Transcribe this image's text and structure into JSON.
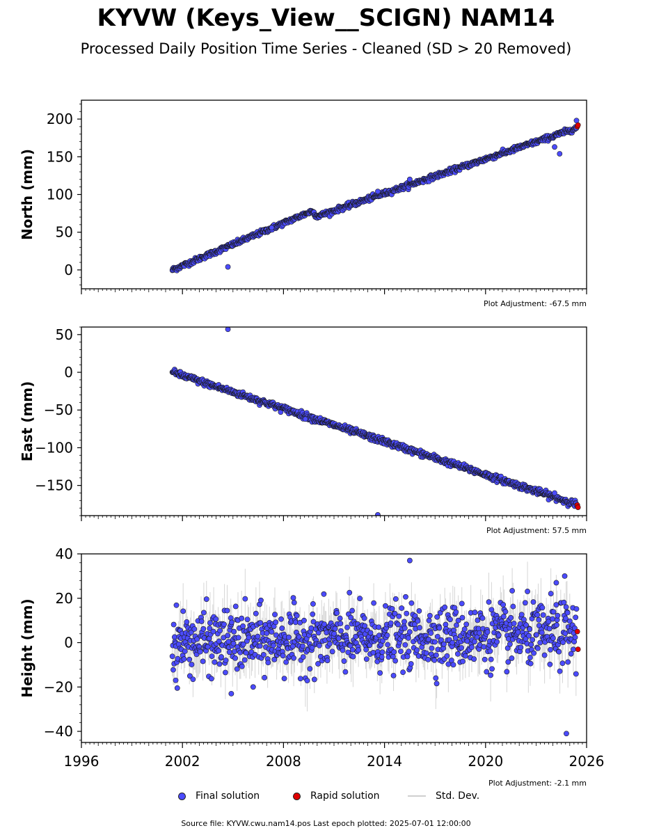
{
  "header": {
    "title": "KYVW (Keys_View__SCIGN) NAM14",
    "subtitle": "Processed Daily Position Time Series - Cleaned (SD > 20 Removed)"
  },
  "legend": {
    "final_label": "Final solution",
    "rapid_label": "Rapid solution",
    "sd_label": "Std. Dev."
  },
  "footer": {
    "source": "Source file: KYVW.cwu.nam14.pos  Last epoch plotted: 2025-07-01 12:00:00"
  },
  "colors": {
    "final": "#4b4bff",
    "rapid": "#e00000",
    "stddev": "#c8c8c8",
    "marker_edge": "#1a1a1a"
  },
  "chart_data": [
    {
      "type": "scatter",
      "ylabel": "North (mm)",
      "ylim": [
        -25,
        225
      ],
      "yticks": [
        0,
        50,
        100,
        150,
        200
      ],
      "xlim": [
        1996,
        2026
      ],
      "xticks": [
        1996,
        2002,
        2008,
        2014,
        2020,
        2026
      ],
      "show_xtick_labels": false,
      "adjustment": "Plot Adjustment: -67.5 mm",
      "series": [
        {
          "name": "Final solution",
          "trend_points": [
            [
              2001.4,
              0
            ],
            [
              2009.7,
              78
            ],
            [
              2010.0,
              71
            ],
            [
              2025.4,
              188
            ]
          ],
          "scatter_sd_mm": 1.6
        },
        {
          "name": "Rapid solution",
          "points": [
            [
              2025.45,
              190
            ],
            [
              2025.49,
              192
            ]
          ]
        }
      ],
      "outliers": [
        [
          2004.7,
          4
        ],
        [
          2013.6,
          104
        ],
        [
          2015.5,
          120
        ],
        [
          2024.1,
          163
        ],
        [
          2024.4,
          154
        ],
        [
          2025.4,
          198
        ],
        [
          2007.3,
          56
        ]
      ]
    },
    {
      "type": "scatter",
      "ylabel": "East (mm)",
      "ylim": [
        -190,
        60
      ],
      "yticks": [
        50,
        0,
        -50,
        -100,
        -150
      ],
      "xlim": [
        1996,
        2026
      ],
      "xticks": [
        1996,
        2002,
        2008,
        2014,
        2020,
        2026
      ],
      "show_xtick_labels": false,
      "adjustment": "Plot Adjustment: 57.5 mm",
      "series": [
        {
          "name": "Final solution",
          "trend_points": [
            [
              2001.4,
              0
            ],
            [
              2025.4,
              -175
            ]
          ],
          "scatter_sd_mm": 2.0
        },
        {
          "name": "Rapid solution",
          "points": [
            [
              2025.45,
              -176
            ],
            [
              2025.49,
              -179
            ]
          ]
        }
      ],
      "outliers": [
        [
          2004.7,
          57
        ],
        [
          2013.6,
          -189
        ],
        [
          2009.3,
          -62
        ],
        [
          2024.1,
          -160
        ]
      ]
    },
    {
      "type": "scatter",
      "ylabel": "Height (mm)",
      "ylim": [
        -45,
        40
      ],
      "yticks": [
        40,
        20,
        0,
        -20,
        -40
      ],
      "xlim": [
        1996,
        2026
      ],
      "xticks": [
        1996,
        2002,
        2008,
        2014,
        2020,
        2026
      ],
      "show_xtick_labels": true,
      "adjustment": "Plot Adjustment: -2.1 mm",
      "series": [
        {
          "name": "Final solution",
          "trend_points": [
            [
              2001.4,
              0
            ],
            [
              2025.4,
              4
            ]
          ],
          "scatter_sd_mm": 7.0
        },
        {
          "name": "Rapid solution",
          "points": [
            [
              2025.45,
              5
            ],
            [
              2025.49,
              -3
            ]
          ]
        }
      ],
      "outliers": [
        [
          2015.5,
          37
        ],
        [
          2024.8,
          -41
        ],
        [
          2004.9,
          -23
        ],
        [
          2006.2,
          -20
        ],
        [
          2024.7,
          30
        ],
        [
          2024.2,
          27
        ],
        [
          2001.6,
          -17
        ]
      ]
    }
  ]
}
